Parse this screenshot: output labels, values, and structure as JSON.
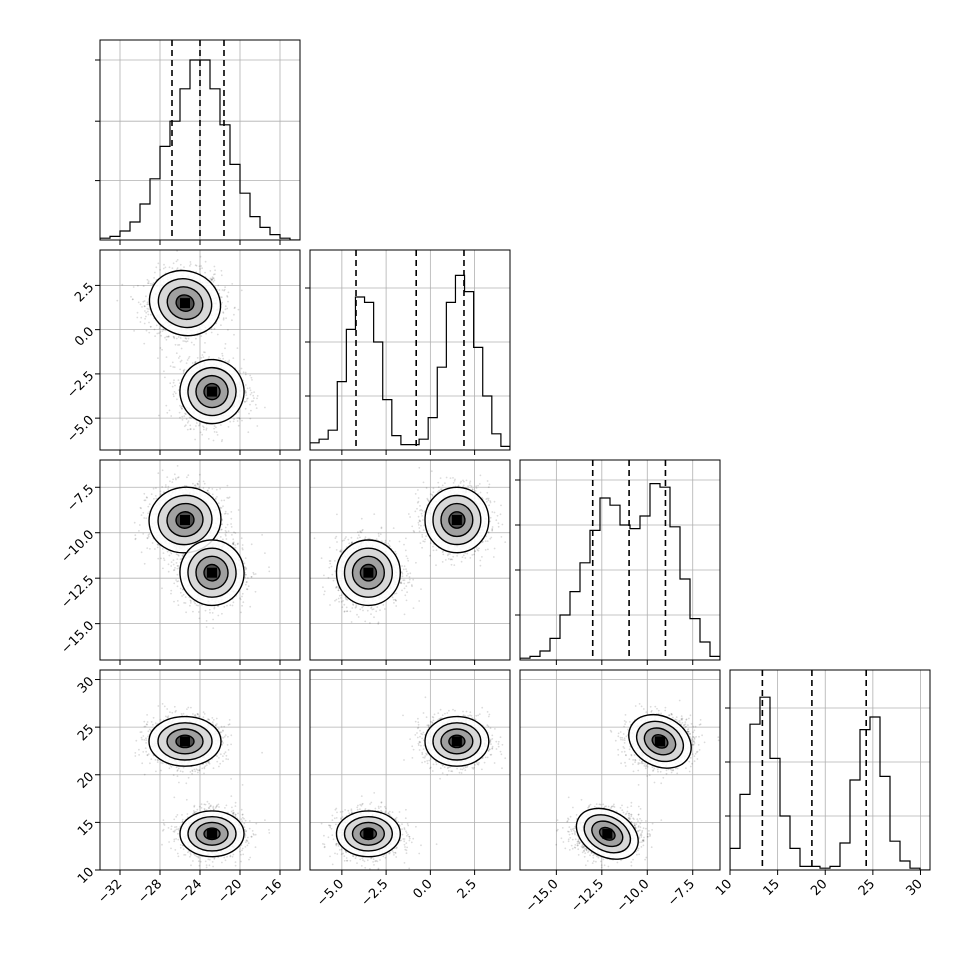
{
  "chart_data": {
    "type": "corner",
    "grid": true,
    "params": [
      {
        "range": [
          -34,
          -14
        ],
        "ticks": [
          "−32",
          "−28",
          "−24",
          "−20",
          "−16"
        ],
        "tick_values": [
          -32,
          -28,
          -24,
          -20,
          -16
        ],
        "quantiles": [
          -26.8,
          -24.0,
          -21.6
        ],
        "hist": [
          0.01,
          0.02,
          0.05,
          0.1,
          0.2,
          0.34,
          0.52,
          0.66,
          0.84,
          1.0,
          1.0,
          0.84,
          0.64,
          0.42,
          0.26,
          0.13,
          0.07,
          0.03,
          0.01,
          0.0
        ],
        "hist_axis_ticks": [
          0.33,
          0.66,
          1.0
        ]
      },
      {
        "range": [
          -6.8,
          4.5
        ],
        "ticks": [
          "−5.0",
          "−2.5",
          "0.0",
          "2.5"
        ],
        "tick_values": [
          -5.0,
          -2.5,
          0.0,
          2.5
        ],
        "quantiles": [
          -4.2,
          -0.8,
          1.9
        ],
        "hist": [
          0.04,
          0.06,
          0.11,
          0.38,
          0.67,
          0.85,
          0.82,
          0.6,
          0.28,
          0.08,
          0.03,
          0.03,
          0.06,
          0.18,
          0.46,
          0.82,
          0.97,
          0.88,
          0.57,
          0.3,
          0.09,
          0.02
        ],
        "hist_axis_ticks": [
          0.3,
          0.6,
          0.9
        ]
      },
      {
        "range": [
          -17,
          -6
        ],
        "ticks": [
          "−15.0",
          "−12.5",
          "−10.0",
          "−7.5"
        ],
        "tick_values": [
          -15.0,
          -12.5,
          -10.0,
          -7.5
        ],
        "quantiles": [
          -13.0,
          -11.0,
          -9.0
        ],
        "hist": [
          0.01,
          0.02,
          0.05,
          0.12,
          0.25,
          0.38,
          0.54,
          0.72,
          0.9,
          0.86,
          0.75,
          0.73,
          0.8,
          0.98,
          0.96,
          0.74,
          0.45,
          0.23,
          0.1,
          0.02
        ],
        "hist_axis_ticks": [
          0.25,
          0.5,
          0.75,
          1.0
        ]
      },
      {
        "range": [
          10,
          31
        ],
        "ticks": [
          "10",
          "15",
          "20",
          "25",
          "30"
        ],
        "tick_values": [
          10,
          15,
          20,
          25,
          30
        ],
        "quantiles": [
          13.4,
          18.6,
          24.3
        ],
        "hist": [
          0.12,
          0.42,
          0.81,
          0.96,
          0.62,
          0.3,
          0.12,
          0.02,
          0.02,
          0.01,
          0.02,
          0.15,
          0.5,
          0.78,
          0.85,
          0.52,
          0.16,
          0.05,
          0.01,
          0.0
        ],
        "hist_axis_ticks": [
          0.3,
          0.6,
          0.9
        ]
      }
    ],
    "y_ticks": [
      null,
      [
        "−5.0",
        "−2.5",
        "0.0",
        "2.5"
      ],
      [
        "−15.0",
        "−12.5",
        "−10.0",
        "−7.5"
      ],
      [
        "10",
        "15",
        "20",
        "25",
        "30"
      ]
    ],
    "y_tick_values": [
      null,
      [
        -5.0,
        -2.5,
        0.0,
        2.5
      ],
      [
        -15.0,
        -12.5,
        -10.0,
        -7.5
      ],
      [
        10,
        15,
        20,
        25,
        30
      ]
    ],
    "clusters": [
      {
        "mean": [
          -25.5,
          1.5,
          -9.3,
          23.5
        ],
        "sd": [
          1.8,
          0.9,
          0.9,
          1.3
        ],
        "weight": 0.5
      },
      {
        "mean": [
          -22.8,
          -3.5,
          -12.2,
          13.8
        ],
        "sd": [
          1.6,
          0.9,
          0.9,
          1.2
        ],
        "weight": 0.5
      }
    ]
  }
}
